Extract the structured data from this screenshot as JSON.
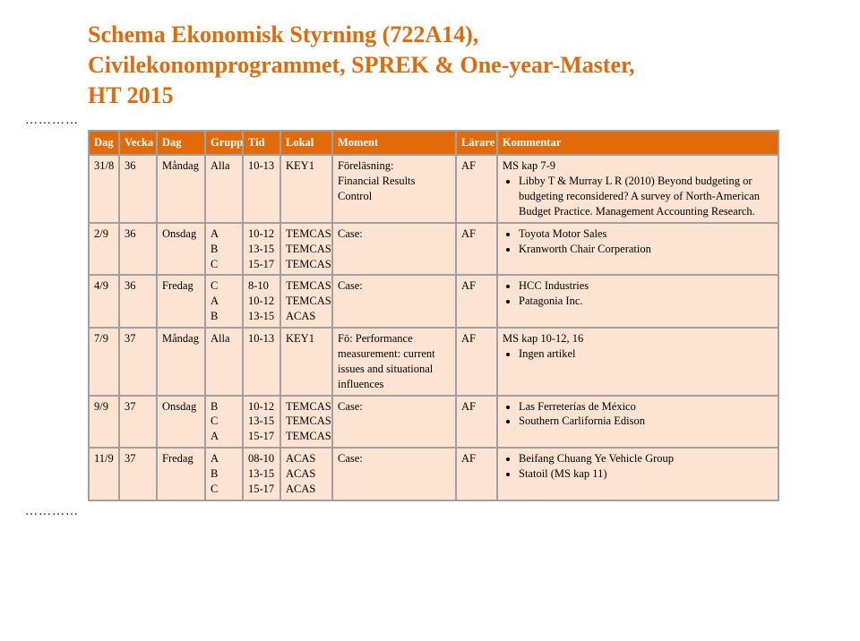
{
  "title_line1": "Schema Ekonomisk Styrning (722A14),",
  "title_line2": "Civilekonomprogrammet, SPREK & One-year-Master,",
  "title_line3": "HT 2015",
  "dots": "…………",
  "columns": [
    "Dag",
    "Vecka",
    "Dag",
    "Grupp",
    "Tid",
    "Lokal",
    "Moment",
    "Lärare",
    "Kommentar"
  ],
  "colors": {
    "header_bg": "#e26a0a",
    "header_fg": "#ffffff",
    "cell_bg": "#fde3d2",
    "border": "#a0a0a0",
    "title_color": "#e26a0a"
  },
  "rows": [
    {
      "date": "31/8",
      "vecka": "36",
      "dag": "Måndag",
      "grupp": [
        "Alla"
      ],
      "tid": [
        "10-13"
      ],
      "lokal": [
        "KEY1"
      ],
      "moment": "Föreläsning:\nFinancial Results Control",
      "larare": "AF",
      "komm_prefix": "MS kap 7-9",
      "komm_items": [
        "Libby T & Murray L R (2010) Beyond budgeting or budgeting reconsidered? A survey of North-American Budget Practice. Management Accounting Research."
      ]
    },
    {
      "date": "2/9",
      "vecka": "36",
      "dag": "Onsdag",
      "grupp": [
        "A",
        "B",
        "C"
      ],
      "tid": [
        "10-12",
        "13-15",
        "15-17"
      ],
      "lokal": [
        "TEMCAS",
        "TEMCAS",
        "TEMCAS"
      ],
      "moment": "Case:",
      "larare": "AF",
      "komm_prefix": "",
      "komm_items": [
        "Toyota Motor Sales",
        "Kranworth Chair Corperation"
      ]
    },
    {
      "date": "4/9",
      "vecka": "36",
      "dag": "Fredag",
      "grupp": [
        "C",
        "A",
        "B"
      ],
      "tid": [
        "8-10",
        "10-12",
        "13-15"
      ],
      "lokal": [
        "TEMCAS",
        "TEMCAS",
        "ACAS"
      ],
      "moment": "Case:",
      "larare": "AF",
      "komm_prefix": "",
      "komm_items": [
        "HCC Industries",
        "Patagonia Inc."
      ]
    },
    {
      "date": "7/9",
      "vecka": "37",
      "dag": "Måndag",
      "grupp": [
        "Alla"
      ],
      "tid": [
        "10-13"
      ],
      "lokal": [
        "KEY1"
      ],
      "moment": "Fö: Performance measurement: current issues and situational influences",
      "larare": "AF",
      "komm_prefix": "MS kap 10-12, 16",
      "komm_items": [
        "Ingen artikel"
      ]
    },
    {
      "date": "9/9",
      "vecka": "37",
      "dag": "Onsdag",
      "grupp": [
        "B",
        "C",
        "A"
      ],
      "tid": [
        "10-12",
        "13-15",
        "15-17"
      ],
      "lokal": [
        "TEMCAS",
        "TEMCAS",
        "TEMCAS"
      ],
      "moment": "Case:",
      "larare": "AF",
      "komm_prefix": "",
      "komm_items": [
        "Las Ferreterías de México",
        "Southern Carlifornia Edison"
      ]
    },
    {
      "date": "11/9",
      "vecka": "37",
      "dag": "Fredag",
      "grupp": [
        "A",
        "B",
        "C"
      ],
      "tid": [
        "08-10",
        "13-15",
        "15-17"
      ],
      "lokal": [
        "ACAS",
        "ACAS",
        "ACAS"
      ],
      "moment": "Case:",
      "larare": "AF",
      "komm_prefix": "",
      "komm_items": [
        "Beifang Chuang Ye Vehicle Group",
        "Statoil (MS kap 11)"
      ]
    }
  ]
}
